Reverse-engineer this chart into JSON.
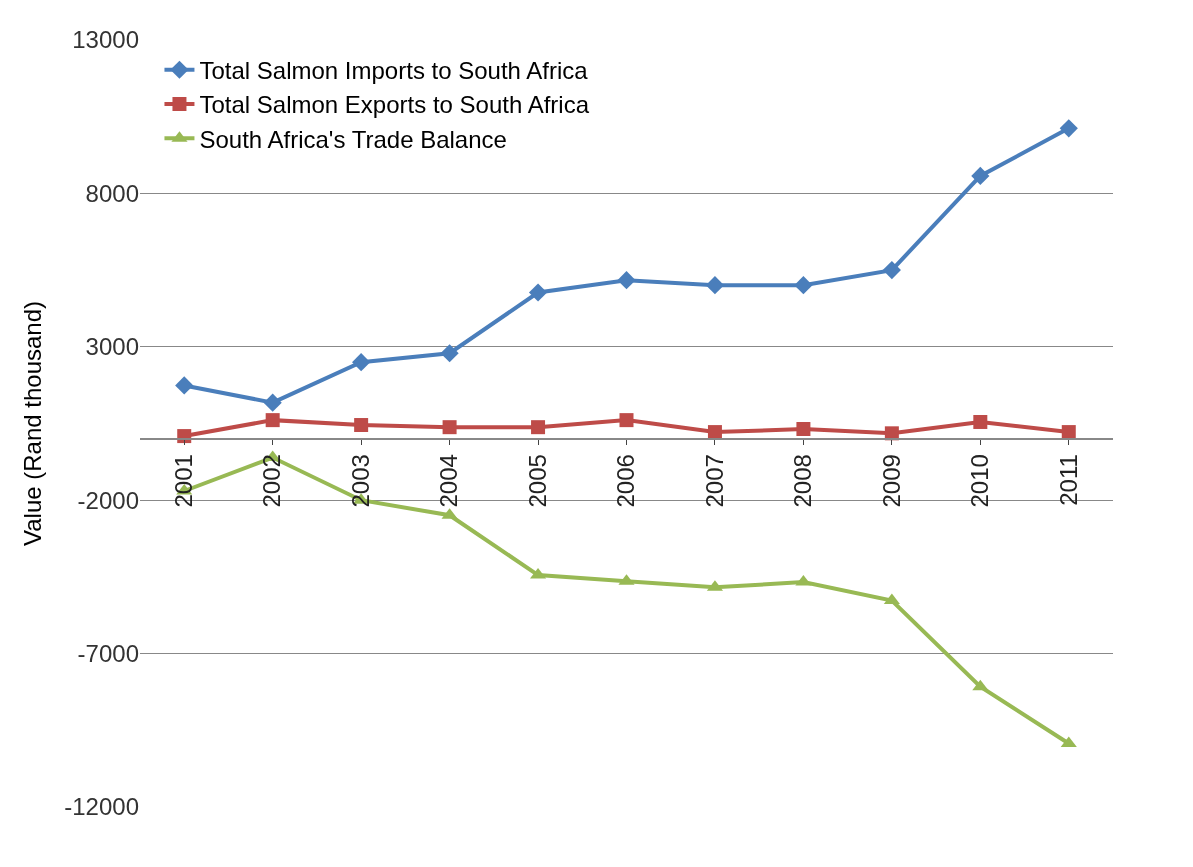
{
  "chart_data": {
    "type": "line",
    "ylabel": "Value (Rand thousand)",
    "categories": [
      "2001",
      "2002",
      "2003",
      "2004",
      "2005",
      "2006",
      "2007",
      "2008",
      "2009",
      "2010",
      "2011"
    ],
    "series": [
      {
        "name": "Total Salmon Imports to South Africa",
        "color": "#4a7ebb",
        "marker": "diamond",
        "values": [
          1740,
          1180,
          2500,
          2790,
          4770,
          5170,
          5010,
          5010,
          5500,
          8570,
          10120
        ]
      },
      {
        "name": "Total Salmon Exports to South Africa",
        "color": "#be4b48",
        "marker": "square",
        "values": [
          90,
          610,
          450,
          380,
          380,
          610,
          220,
          320,
          180,
          550,
          220
        ]
      },
      {
        "name": "South Africa's Trade Balance",
        "color": "#98b954",
        "marker": "triangle",
        "values": [
          -1700,
          -610,
          -2000,
          -2490,
          -4440,
          -4640,
          -4840,
          -4670,
          -5270,
          -8080,
          -9930
        ]
      }
    ],
    "ylim": [
      -12000,
      13000
    ],
    "yticks": [
      -12000,
      -7000,
      -2000,
      3000,
      8000,
      13000
    ],
    "grid": "y",
    "legend": "top left",
    "line_style": "solid"
  }
}
